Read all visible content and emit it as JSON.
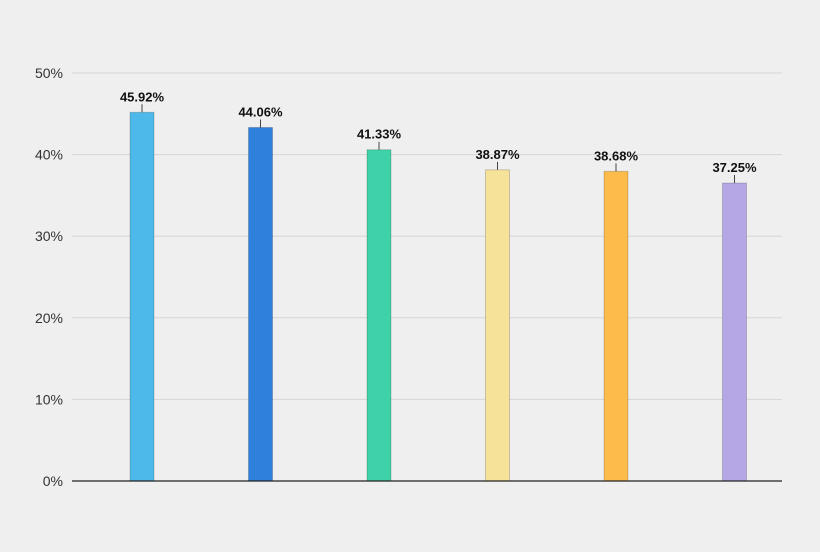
{
  "chart_data": {
    "type": "bar",
    "title": "",
    "xlabel": "",
    "ylabel": "",
    "categories": [
      "",
      "",
      "",
      "",
      "",
      ""
    ],
    "values": [
      45.92,
      44.06,
      41.33,
      38.87,
      38.68,
      37.25
    ],
    "value_labels": [
      "45.92%",
      "44.06%",
      "41.33%",
      "38.87%",
      "38.68%",
      "37.25%"
    ],
    "bar_colors": [
      "#4db8ea",
      "#2f7fdc",
      "#3fd1a8",
      "#f7e29a",
      "#fdbb4c",
      "#b5a6e6"
    ],
    "ylim": [
      0,
      50
    ],
    "yticks": [
      0,
      10,
      20,
      30,
      40,
      50
    ],
    "ytick_labels": [
      "0%",
      "10%",
      "20%",
      "30%",
      "40%",
      "50%"
    ],
    "grid": true,
    "legend": "none"
  }
}
